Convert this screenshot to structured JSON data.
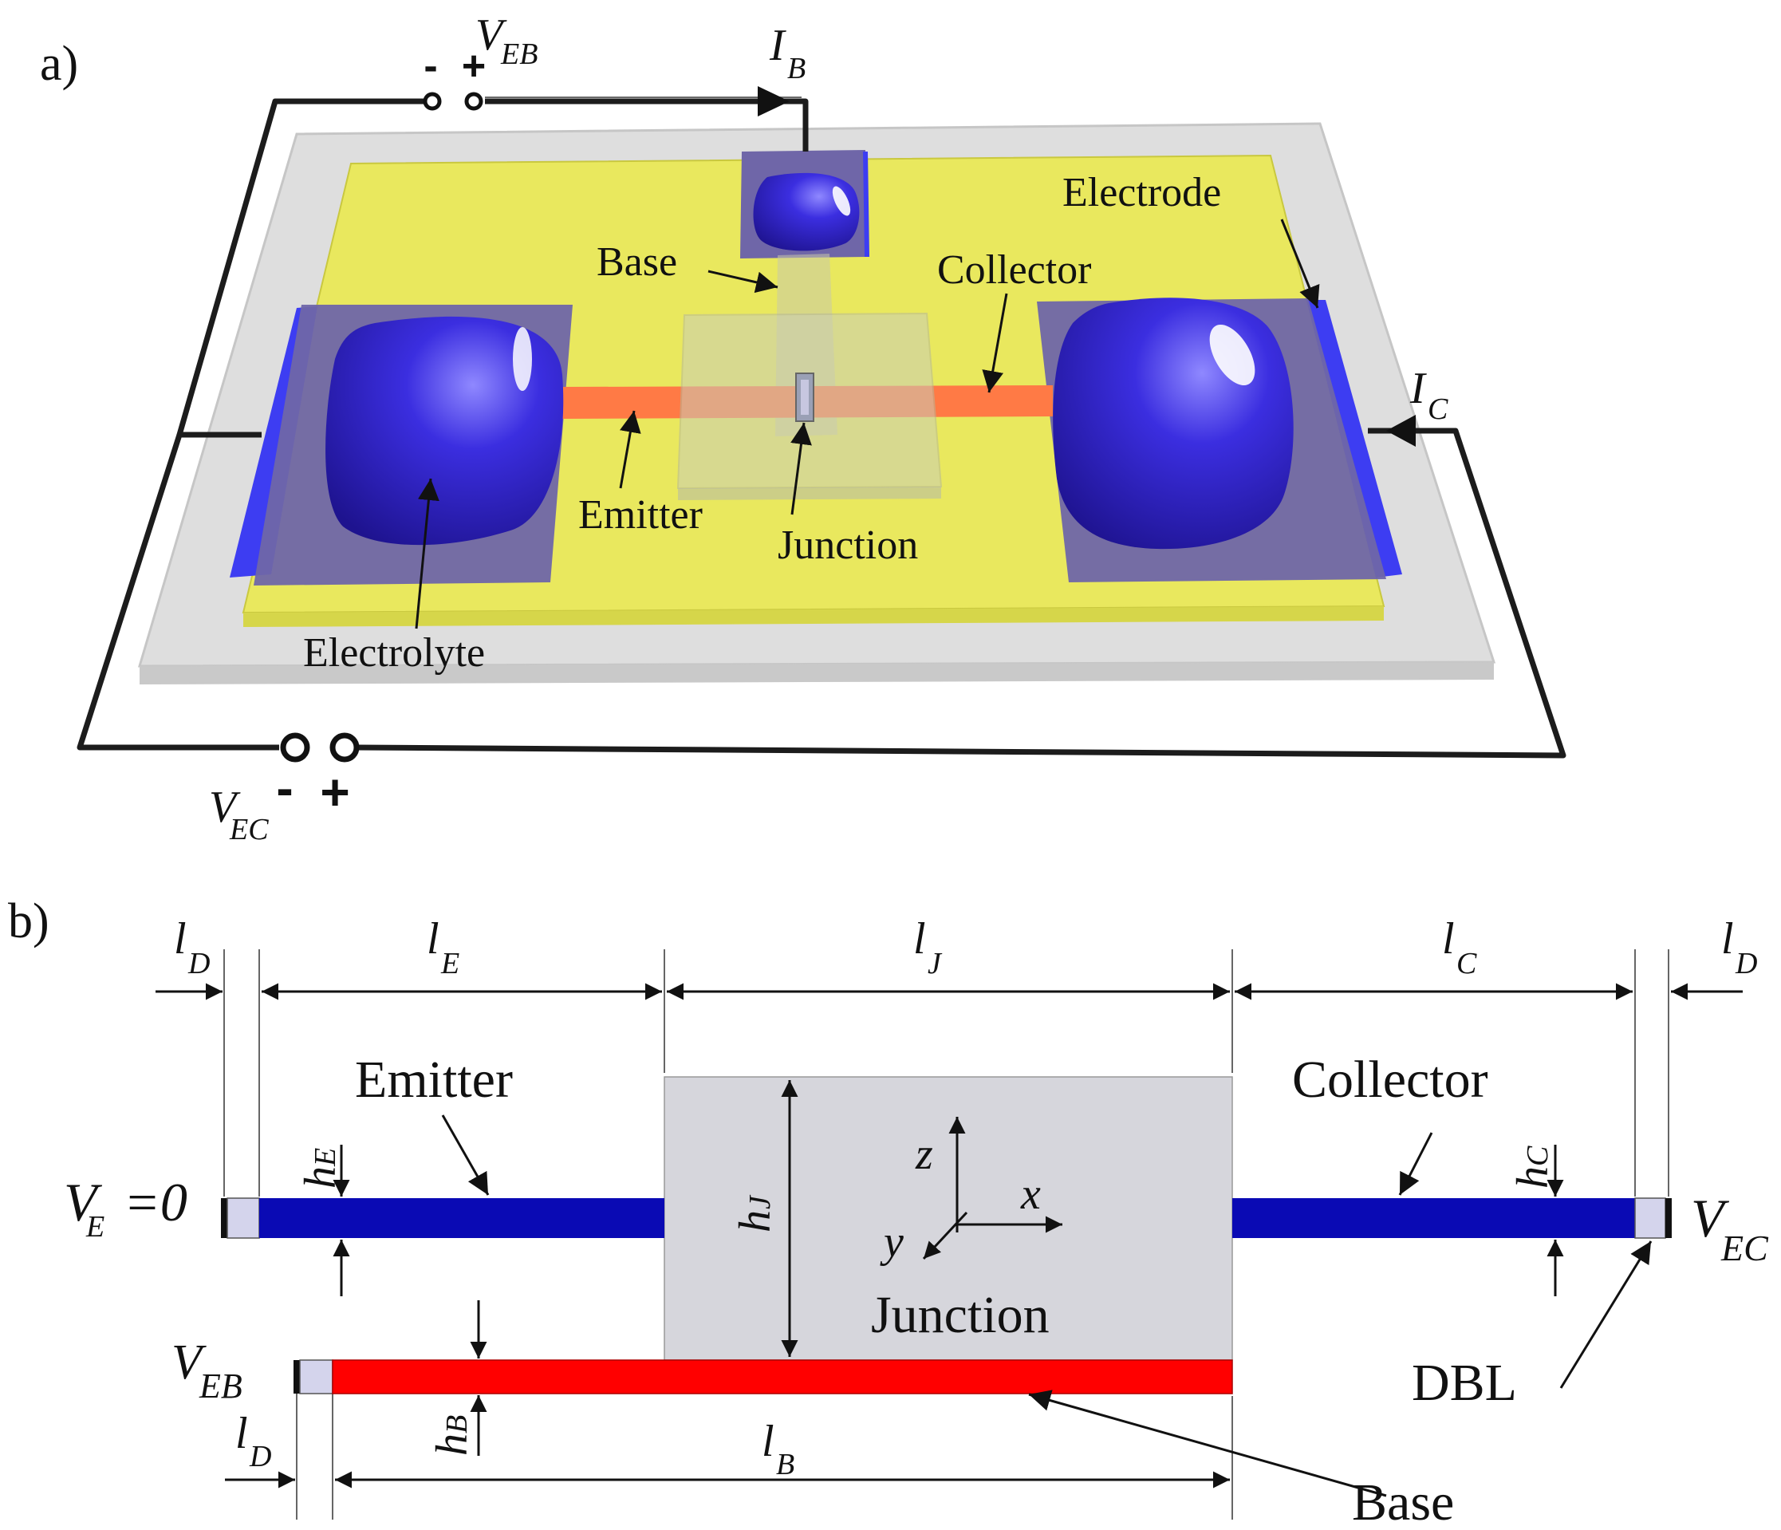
{
  "panel_a": {
    "label": "a)",
    "labels": {
      "base": "Base",
      "collector": "Collector",
      "electrode": "Electrode",
      "emitter": "Emitter",
      "junction": "Junction",
      "electrolyte": "Electrolyte"
    },
    "sources": {
      "veb": {
        "symbol": "V",
        "sub": "EB",
        "minus": "-",
        "plus": "+"
      },
      "vec": {
        "symbol": "V",
        "sub": "EC",
        "minus": "-",
        "plus": "+"
      },
      "ib": {
        "symbol": "I",
        "sub": "B"
      },
      "ic": {
        "symbol": "I",
        "sub": "C"
      }
    }
  },
  "panel_b": {
    "label": "b)",
    "labels": {
      "emitter": "Emitter",
      "collector": "Collector",
      "junction": "Junction",
      "base": "Base",
      "dbl": "DBL"
    },
    "dims": {
      "lD_left": {
        "symbol": "l",
        "sub": "D"
      },
      "lE": {
        "symbol": "l",
        "sub": "E"
      },
      "lJ": {
        "symbol": "l",
        "sub": "J"
      },
      "lC": {
        "symbol": "l",
        "sub": "C"
      },
      "lD_right": {
        "symbol": "l",
        "sub": "D"
      },
      "hE": {
        "symbol": "h",
        "sub": "E"
      },
      "hC": {
        "symbol": "h",
        "sub": "C"
      },
      "hJ": {
        "symbol": "h",
        "sub": "J"
      },
      "hB": {
        "symbol": "h",
        "sub": "B"
      },
      "lB": {
        "symbol": "l",
        "sub": "B"
      },
      "lD_bottom": {
        "symbol": "l",
        "sub": "D"
      }
    },
    "voltages": {
      "ve": {
        "symbol": "V",
        "sub": "E",
        "value": "=0"
      },
      "vec": {
        "symbol": "V",
        "sub": "EC"
      },
      "veb": {
        "symbol": "V",
        "sub": "EB"
      }
    },
    "axes": {
      "x": "x",
      "y": "y",
      "z": "z"
    }
  },
  "colors": {
    "substrate": "#dadada",
    "film": "#e9e85e",
    "electrolyte": "#3a2fd6",
    "electrode_plate": "#6f66a8",
    "channel": "#ff7a45",
    "emitter_bar": "#0a0ab4",
    "base_bar": "#ff0000",
    "junction_box": "#d6d6dc",
    "dbl": "#d4d4ec"
  }
}
